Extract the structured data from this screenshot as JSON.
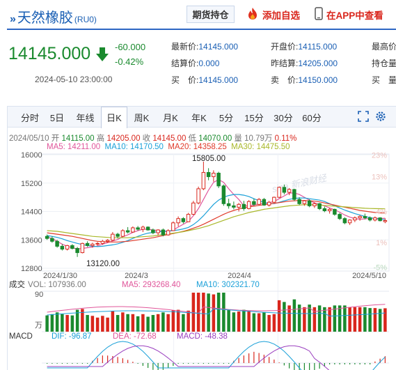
{
  "header": {
    "title_marks": "»",
    "title": "天然橡胶",
    "code": "(RU0)",
    "futures_button": "期货持仓",
    "add_favorite": "添加自选",
    "app_link": "在APP中查看"
  },
  "quote": {
    "price": "14145.000",
    "change": "-60.000",
    "change_pct": "-0.42%",
    "datetime": "2024-05-10 23:00:00",
    "fields": [
      {
        "label": "最新价:",
        "value": "14145.000"
      },
      {
        "label": "开盘价:",
        "value": "14115.000"
      },
      {
        "label": "最高价",
        "value": ""
      },
      {
        "label": "结算价:",
        "value": "0.000"
      },
      {
        "label": "昨结算:",
        "value": "14205.000"
      },
      {
        "label": "持仓量",
        "value": ""
      },
      {
        "label": "买　价:",
        "value": "14145.000"
      },
      {
        "label": "卖　价:",
        "value": "14150.000"
      },
      {
        "label": "买　量",
        "value": ""
      }
    ]
  },
  "tabs": [
    "分时",
    "5日",
    "年线",
    "日K",
    "周K",
    "月K",
    "年K",
    "5分",
    "15分",
    "30分",
    "60分"
  ],
  "active_tab": "日K",
  "ohlc": {
    "date": "2024/05/10",
    "open_label": "开",
    "open": "14115.00",
    "high_label": "高",
    "high": "14205.00",
    "close_label": "收",
    "close": "14145.00",
    "low_label": "低",
    "low": "14070.00",
    "vol_label": "量",
    "vol": "10.79万",
    "pct": "0.11%"
  },
  "ma": {
    "ma5": "MA5: 14211.00",
    "ma10": "MA10: 14170.50",
    "ma20": "MA20: 14358.25",
    "ma30": "MA30: 14475.50"
  },
  "volume_panel": {
    "title": "成交",
    "vol": "VOL: 107936.00",
    "ma5": "MA5: 293268.40",
    "ma10": "MA10: 302321.70",
    "top_label": "90",
    "unit_label": "万"
  },
  "macd_panel": {
    "title": "MACD",
    "dif": "DIF: -96.87",
    "dea": "DEA: -72.68",
    "macd": "MACD: -48.38"
  },
  "watermark": "sina 新浪财经",
  "colors": {
    "up": "#d9261c",
    "down": "#1a8a2e",
    "ma5": "#e0559a",
    "ma10": "#1aa0d8",
    "ma20": "#e03a2a",
    "ma30": "#a9b82a",
    "accent": "#1a5fb4"
  },
  "icons": {
    "fire": "fire-icon",
    "phone": "phone-icon",
    "fullscreen": "fullscreen-icon",
    "settings": "gear-icon"
  },
  "chart_data": {
    "type": "candlestick",
    "x_tick_labels": [
      "2024/1/30",
      "2024/3",
      "2024/4",
      "2024/5/10"
    ],
    "y_tick_labels": [
      "16000",
      "15200",
      "14400",
      "13600",
      "12800"
    ],
    "pct_tick_labels": [
      "23%",
      "13%",
      "4%",
      "1%",
      "-5%"
    ],
    "ylim": [
      12800,
      16000
    ],
    "annotations": [
      {
        "label": "15805.00",
        "value": 15805
      },
      {
        "label": "13120.00",
        "value": 13120
      }
    ],
    "candles": [
      {
        "o": 13700,
        "h": 13750,
        "l": 13600,
        "c": 13640
      },
      {
        "o": 13640,
        "h": 13700,
        "l": 13520,
        "c": 13560
      },
      {
        "o": 13560,
        "h": 13600,
        "l": 13380,
        "c": 13420
      },
      {
        "o": 13420,
        "h": 13480,
        "l": 13300,
        "c": 13340
      },
      {
        "o": 13340,
        "h": 13460,
        "l": 13300,
        "c": 13440
      },
      {
        "o": 13440,
        "h": 13480,
        "l": 13330,
        "c": 13360
      },
      {
        "o": 13360,
        "h": 13400,
        "l": 13120,
        "c": 13240
      },
      {
        "o": 13240,
        "h": 13520,
        "l": 13220,
        "c": 13500
      },
      {
        "o": 13500,
        "h": 13560,
        "l": 13400,
        "c": 13440
      },
      {
        "o": 13440,
        "h": 13520,
        "l": 13380,
        "c": 13480
      },
      {
        "o": 13480,
        "h": 13540,
        "l": 13440,
        "c": 13500
      },
      {
        "o": 13500,
        "h": 13600,
        "l": 13460,
        "c": 13560
      },
      {
        "o": 13560,
        "h": 13620,
        "l": 13520,
        "c": 13590
      },
      {
        "o": 13590,
        "h": 13820,
        "l": 13570,
        "c": 13760
      },
      {
        "o": 13760,
        "h": 13800,
        "l": 13640,
        "c": 13700
      },
      {
        "o": 13700,
        "h": 13900,
        "l": 13680,
        "c": 13860
      },
      {
        "o": 13860,
        "h": 13960,
        "l": 13780,
        "c": 13820
      },
      {
        "o": 13820,
        "h": 13980,
        "l": 13800,
        "c": 13940
      },
      {
        "o": 13940,
        "h": 13990,
        "l": 13860,
        "c": 13900
      },
      {
        "o": 13900,
        "h": 14000,
        "l": 13820,
        "c": 13960
      },
      {
        "o": 13960,
        "h": 13980,
        "l": 13860,
        "c": 13880
      },
      {
        "o": 13880,
        "h": 13920,
        "l": 13760,
        "c": 13800
      },
      {
        "o": 13800,
        "h": 13900,
        "l": 13720,
        "c": 13880
      },
      {
        "o": 13880,
        "h": 13920,
        "l": 13700,
        "c": 13740
      },
      {
        "o": 13740,
        "h": 13900,
        "l": 13720,
        "c": 13860
      },
      {
        "o": 13860,
        "h": 14120,
        "l": 13850,
        "c": 14080
      },
      {
        "o": 14080,
        "h": 14260,
        "l": 13980,
        "c": 14200
      },
      {
        "o": 14200,
        "h": 14240,
        "l": 14060,
        "c": 14110
      },
      {
        "o": 14110,
        "h": 14360,
        "l": 14100,
        "c": 14320
      },
      {
        "o": 14320,
        "h": 14700,
        "l": 14300,
        "c": 14640
      },
      {
        "o": 14640,
        "h": 15100,
        "l": 14600,
        "c": 15040
      },
      {
        "o": 15040,
        "h": 15805,
        "l": 15000,
        "c": 15500
      },
      {
        "o": 15500,
        "h": 15620,
        "l": 15280,
        "c": 15380
      },
      {
        "o": 15380,
        "h": 15560,
        "l": 15240,
        "c": 15480
      },
      {
        "o": 15480,
        "h": 15520,
        "l": 15060,
        "c": 15120
      },
      {
        "o": 15120,
        "h": 15160,
        "l": 14560,
        "c": 14620
      },
      {
        "o": 14620,
        "h": 14760,
        "l": 14480,
        "c": 14560
      },
      {
        "o": 14560,
        "h": 14680,
        "l": 14460,
        "c": 14520
      },
      {
        "o": 14520,
        "h": 14640,
        "l": 14400,
        "c": 14600
      },
      {
        "o": 14600,
        "h": 14700,
        "l": 14420,
        "c": 14480
      },
      {
        "o": 14480,
        "h": 14720,
        "l": 14460,
        "c": 14680
      },
      {
        "o": 14680,
        "h": 14760,
        "l": 14560,
        "c": 14600
      },
      {
        "o": 14600,
        "h": 14780,
        "l": 14580,
        "c": 14740
      },
      {
        "o": 14740,
        "h": 14780,
        "l": 14560,
        "c": 14580
      },
      {
        "o": 14580,
        "h": 14700,
        "l": 14540,
        "c": 14660
      },
      {
        "o": 14660,
        "h": 14820,
        "l": 14640,
        "c": 14800
      },
      {
        "o": 14800,
        "h": 15100,
        "l": 14780,
        "c": 15080
      },
      {
        "o": 15080,
        "h": 15160,
        "l": 14880,
        "c": 14940
      },
      {
        "o": 14940,
        "h": 15060,
        "l": 14860,
        "c": 15020
      },
      {
        "o": 15020,
        "h": 15040,
        "l": 14700,
        "c": 14740
      },
      {
        "o": 14740,
        "h": 14800,
        "l": 14580,
        "c": 14620
      },
      {
        "o": 14620,
        "h": 14720,
        "l": 14560,
        "c": 14700
      },
      {
        "o": 14700,
        "h": 14740,
        "l": 14520,
        "c": 14560
      },
      {
        "o": 14560,
        "h": 14660,
        "l": 14500,
        "c": 14620
      },
      {
        "o": 14620,
        "h": 14640,
        "l": 14440,
        "c": 14480
      },
      {
        "o": 14480,
        "h": 14540,
        "l": 14380,
        "c": 14420
      },
      {
        "o": 14420,
        "h": 14500,
        "l": 14340,
        "c": 14460
      },
      {
        "o": 14460,
        "h": 14480,
        "l": 14280,
        "c": 14320
      },
      {
        "o": 14320,
        "h": 14360,
        "l": 14160,
        "c": 14200
      },
      {
        "o": 14200,
        "h": 14240,
        "l": 14040,
        "c": 14080
      },
      {
        "o": 14080,
        "h": 14180,
        "l": 14020,
        "c": 14160
      },
      {
        "o": 14160,
        "h": 14260,
        "l": 14100,
        "c": 14220
      },
      {
        "o": 14220,
        "h": 14300,
        "l": 14140,
        "c": 14260
      },
      {
        "o": 14260,
        "h": 14340,
        "l": 14180,
        "c": 14220
      },
      {
        "o": 14220,
        "h": 14260,
        "l": 14120,
        "c": 14160
      },
      {
        "o": 14160,
        "h": 14260,
        "l": 14120,
        "c": 14220
      },
      {
        "o": 14220,
        "h": 14240,
        "l": 14120,
        "c": 14140
      },
      {
        "o": 14115,
        "h": 14205,
        "l": 14070,
        "c": 14145
      }
    ],
    "ma_series": [
      {
        "name": "MA5",
        "values": [
          13680,
          13640,
          13560,
          13480,
          13420,
          13380,
          13340,
          13360,
          13380,
          13400,
          13430,
          13480,
          13520,
          13570,
          13610,
          13690,
          13740,
          13810,
          13860,
          13900,
          13900,
          13880,
          13860,
          13840,
          13830,
          13880,
          13960,
          14040,
          14120,
          14280,
          14480,
          14740,
          15000,
          15220,
          15300,
          15220,
          15040,
          14880,
          14740,
          14560,
          14560,
          14580,
          14620,
          14620,
          14650,
          14680,
          14760,
          14840,
          14920,
          14920,
          14880,
          14800,
          14720,
          14640,
          14600,
          14560,
          14500,
          14450,
          14380,
          14300,
          14240,
          14200,
          14180,
          14190,
          14210,
          14210,
          14200,
          14211
        ]
      },
      {
        "name": "MA10",
        "values": [
          13720,
          13700,
          13670,
          13630,
          13580,
          13540,
          13500,
          13470,
          13440,
          13420,
          13410,
          13420,
          13440,
          13460,
          13490,
          13530,
          13580,
          13640,
          13700,
          13750,
          13790,
          13810,
          13830,
          13840,
          13850,
          13860,
          13880,
          13910,
          13950,
          14030,
          14140,
          14280,
          14440,
          14600,
          14720,
          14800,
          14850,
          14880,
          14880,
          14860,
          14820,
          14760,
          14700,
          14660,
          14620,
          14620,
          14660,
          14700,
          14740,
          14770,
          14780,
          14780,
          14760,
          14740,
          14720,
          14680,
          14620,
          14560,
          14500,
          14440,
          14390,
          14340,
          14300,
          14260,
          14230,
          14200,
          14180,
          14170.5
        ]
      },
      {
        "name": "MA20",
        "values": [
          13800,
          13780,
          13760,
          13740,
          13720,
          13700,
          13670,
          13640,
          13610,
          13580,
          13560,
          13550,
          13540,
          13540,
          13540,
          13550,
          13560,
          13580,
          13600,
          13620,
          13640,
          13660,
          13690,
          13720,
          13750,
          13780,
          13810,
          13840,
          13880,
          13930,
          13980,
          14040,
          14110,
          14180,
          14250,
          14320,
          14380,
          14430,
          14470,
          14500,
          14530,
          14550,
          14570,
          14590,
          14610,
          14630,
          14650,
          14670,
          14690,
          14700,
          14710,
          14710,
          14700,
          14690,
          14670,
          14640,
          14610,
          14580,
          14550,
          14520,
          14490,
          14460,
          14430,
          14410,
          14390,
          14370,
          14360,
          14358.25
        ]
      },
      {
        "name": "MA30",
        "values": [
          13860,
          13850,
          13840,
          13820,
          13800,
          13780,
          13760,
          13740,
          13720,
          13700,
          13690,
          13680,
          13670,
          13660,
          13660,
          13660,
          13660,
          13670,
          13680,
          13690,
          13700,
          13710,
          13730,
          13750,
          13770,
          13790,
          13810,
          13830,
          13860,
          13890,
          13920,
          13960,
          14000,
          14050,
          14100,
          14150,
          14200,
          14250,
          14290,
          14330,
          14370,
          14400,
          14430,
          14460,
          14480,
          14500,
          14520,
          14540,
          14560,
          14570,
          14580,
          14590,
          14590,
          14590,
          14580,
          14570,
          14560,
          14550,
          14540,
          14530,
          14520,
          14510,
          14500,
          14490,
          14485,
          14480,
          14478,
          14475.5
        ]
      }
    ]
  }
}
